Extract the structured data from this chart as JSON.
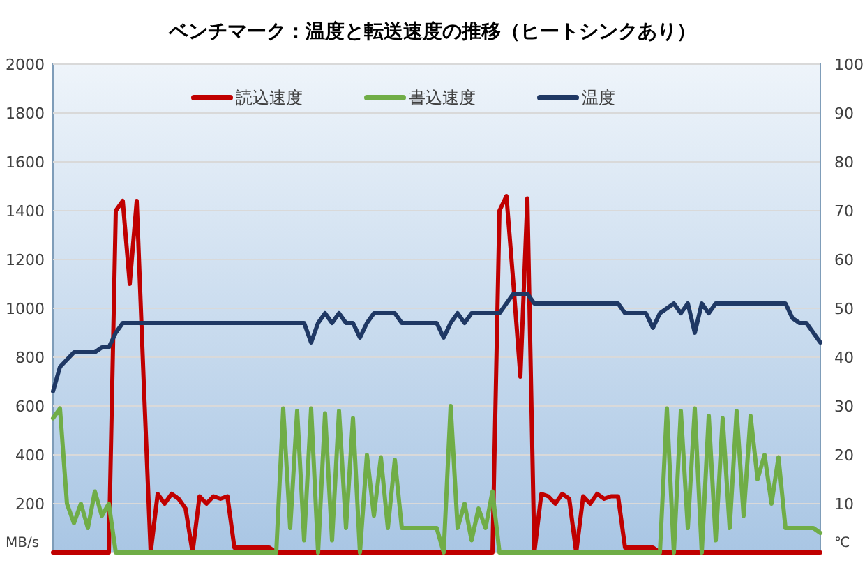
{
  "chart_data": {
    "type": "line",
    "title": "ベンチマーク：温度と転送速度の推移（ヒートシンクあり）",
    "ylabel": "MB/s",
    "y2label": "℃",
    "categories": [
      null,
      null,
      null,
      null,
      null,
      null,
      null,
      null,
      null,
      null,
      null,
      null,
      null,
      null,
      null,
      null,
      null,
      null,
      null,
      null,
      null,
      null,
      null,
      null,
      null,
      null,
      null,
      null,
      null,
      null,
      null,
      null,
      null,
      null,
      null,
      null,
      null,
      null,
      null,
      null,
      null,
      null,
      null,
      null,
      null,
      null,
      null,
      null,
      null,
      null,
      null,
      null,
      null,
      null,
      null,
      null,
      null,
      null,
      null,
      null,
      null,
      null,
      null,
      null,
      null,
      null,
      null,
      null,
      null,
      null,
      null,
      null,
      null,
      null,
      null,
      null,
      null,
      null,
      null,
      null,
      null,
      null,
      null,
      null,
      null,
      null,
      null,
      null,
      null,
      null,
      null,
      null,
      null,
      null,
      null,
      null,
      null,
      null,
      null,
      null,
      null,
      null,
      null,
      null,
      null,
      null,
      null,
      null,
      null,
      null,
      null
    ],
    "series": [
      {
        "name": "読込速度",
        "color": "#c00000",
        "values": [
          0,
          0,
          0,
          0,
          0,
          0,
          0,
          0,
          0,
          1400,
          1440,
          1100,
          1440,
          700,
          0,
          240,
          200,
          240,
          220,
          180,
          0,
          230,
          200,
          230,
          220,
          230,
          20,
          20,
          20,
          20,
          20,
          20,
          0,
          0,
          0,
          0,
          0,
          0,
          0,
          0,
          0,
          0,
          0,
          0,
          0,
          0,
          0,
          0,
          0,
          0,
          0,
          0,
          0,
          0,
          0,
          0,
          0,
          0,
          0,
          0,
          0,
          0,
          0,
          0,
          1400,
          1460,
          1100,
          720,
          1450,
          0,
          240,
          230,
          200,
          240,
          220,
          0,
          230,
          200,
          240,
          220,
          230,
          230,
          20,
          20,
          20,
          20,
          20,
          0,
          0,
          0,
          0,
          0,
          0,
          0,
          0,
          0,
          0,
          0,
          0,
          0,
          0,
          0,
          0,
          0,
          0,
          0,
          0,
          0,
          0,
          0,
          0
        ]
      },
      {
        "name": "書込速度",
        "color": "#70ad47",
        "values": [
          550,
          590,
          200,
          120,
          200,
          100,
          250,
          150,
          200,
          0,
          0,
          0,
          0,
          0,
          0,
          0,
          0,
          0,
          0,
          0,
          0,
          0,
          0,
          0,
          0,
          0,
          0,
          0,
          0,
          0,
          0,
          0,
          0,
          590,
          100,
          580,
          50,
          590,
          0,
          570,
          50,
          580,
          100,
          550,
          0,
          400,
          150,
          390,
          100,
          380,
          100,
          100,
          100,
          100,
          100,
          100,
          0,
          600,
          100,
          200,
          50,
          180,
          100,
          250,
          0,
          0,
          0,
          0,
          0,
          0,
          0,
          0,
          0,
          0,
          0,
          0,
          0,
          0,
          0,
          0,
          0,
          0,
          0,
          0,
          0,
          0,
          0,
          0,
          590,
          0,
          580,
          100,
          590,
          0,
          560,
          50,
          550,
          100,
          580,
          150,
          560,
          300,
          400,
          200,
          390,
          100,
          100,
          100,
          100,
          100,
          80
        ]
      },
      {
        "name": "温度",
        "color": "#1f3864",
        "axis": "y2",
        "values": [
          33,
          38,
          39.5,
          41,
          41,
          41,
          41,
          42,
          42,
          45,
          47,
          47,
          47,
          47,
          47,
          47,
          47,
          47,
          47,
          47,
          47,
          47,
          47,
          47,
          47,
          47,
          47,
          47,
          47,
          47,
          47,
          47,
          47,
          47,
          47,
          47,
          47,
          43,
          47,
          49,
          47,
          49,
          47,
          47,
          44,
          47,
          49,
          49,
          49,
          49,
          47,
          47,
          47,
          47,
          47,
          47,
          44,
          47,
          49,
          47,
          49,
          49,
          49,
          49,
          49,
          51,
          53,
          53,
          53,
          51,
          51,
          51,
          51,
          51,
          51,
          51,
          51,
          51,
          51,
          51,
          51,
          51,
          49,
          49,
          49,
          49,
          46,
          49,
          50,
          51,
          49,
          51,
          45,
          51,
          49,
          51,
          51,
          51,
          51,
          51,
          51,
          51,
          51,
          51,
          51,
          51,
          48,
          47,
          47,
          45,
          43
        ]
      }
    ],
    "ylim": [
      0,
      2000
    ],
    "yticks": [
      {
        "value": 0,
        "label": null
      },
      200,
      400,
      600,
      800,
      1000,
      1200,
      1400,
      1600,
      1800,
      2000
    ],
    "y2lim": [
      0,
      100
    ],
    "y2ticks": [
      10,
      20,
      30,
      40,
      50,
      60,
      70,
      80,
      90,
      100
    ],
    "grid": "y",
    "legend": "top"
  }
}
